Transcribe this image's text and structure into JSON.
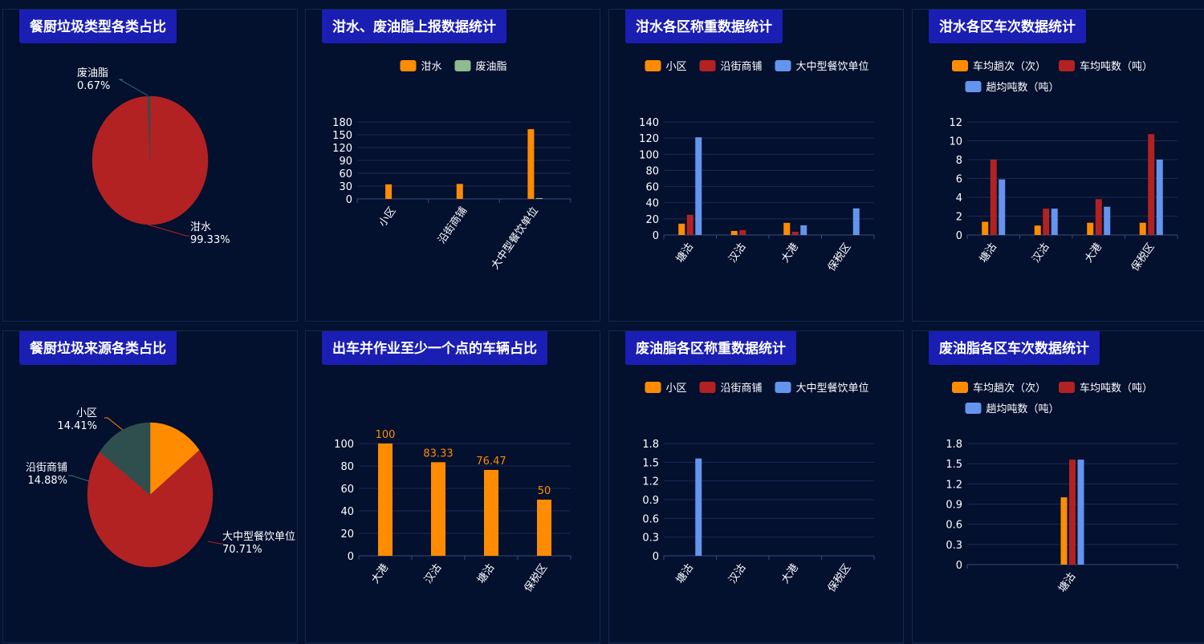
{
  "colors": {
    "orange": "#ff8c00",
    "red": "#b22222",
    "blue": "#6495ed",
    "green": "#8fbc8f",
    "slate": "#2f4f4f"
  },
  "panels": [
    {
      "title": "餐厨垃圾类型各类占比"
    },
    {
      "title": "泔水、废油脂上报数据统计"
    },
    {
      "title": "泔水各区称重数据统计"
    },
    {
      "title": "泔水各区车次数据统计"
    },
    {
      "title": "餐厨垃圾来源各类占比"
    },
    {
      "title": "出车并作业至少一个点的车辆占比"
    },
    {
      "title": "废油脂各区称重数据统计"
    },
    {
      "title": "废油脂各区车次数据统计"
    }
  ],
  "chart_data": [
    {
      "type": "pie",
      "slices": [
        {
          "name": "泔水",
          "value": 99.33,
          "label": "99.33%",
          "color": "#b22222"
        },
        {
          "name": "废油脂",
          "value": 0.67,
          "label": "0.67%",
          "color": "#2f4f4f"
        }
      ]
    },
    {
      "type": "bar",
      "categories": [
        "小区",
        "沿街商铺",
        "大中型餐饮单位"
      ],
      "series": [
        {
          "name": "泔水",
          "values": [
            34,
            35,
            163
          ],
          "color": "#ff8c00"
        },
        {
          "name": "废油脂",
          "values": [
            0,
            0,
            2
          ],
          "color": "#8fbc8f"
        }
      ],
      "ylim": [
        0,
        180
      ],
      "yticks": [
        "0",
        "30",
        "60",
        "90",
        "120",
        "150",
        "180"
      ],
      "legend": "top"
    },
    {
      "type": "bar",
      "categories": [
        "塘沽",
        "汉沽",
        "大港",
        "保税区"
      ],
      "series": [
        {
          "name": "小区",
          "values": [
            14,
            5,
            15,
            0
          ],
          "color": "#ff8c00"
        },
        {
          "name": "沿街商铺",
          "values": [
            25,
            6,
            4,
            0
          ],
          "color": "#b22222"
        },
        {
          "name": "大中型餐饮单位",
          "values": [
            121,
            0,
            12,
            33
          ],
          "color": "#6495ed"
        }
      ],
      "ylim": [
        0,
        140
      ],
      "yticks": [
        "0",
        "20",
        "40",
        "60",
        "80",
        "100",
        "120",
        "140"
      ],
      "legend": "top"
    },
    {
      "type": "bar",
      "categories": [
        "塘沽",
        "汉沽",
        "大港",
        "保税区"
      ],
      "series": [
        {
          "name": "车均趟次（次）",
          "values": [
            1.4,
            1,
            1.3,
            1.3
          ],
          "color": "#ff8c00"
        },
        {
          "name": "车均吨数（吨）",
          "values": [
            8,
            2.8,
            3.8,
            10.7
          ],
          "color": "#b22222"
        },
        {
          "name": "趟均吨数（吨）",
          "values": [
            5.9,
            2.8,
            3,
            8
          ],
          "color": "#6495ed"
        }
      ],
      "ylim": [
        0,
        12
      ],
      "yticks": [
        "0",
        "2",
        "4",
        "6",
        "8",
        "10",
        "12"
      ],
      "legend": "top"
    },
    {
      "type": "pie",
      "slices": [
        {
          "name": "小区",
          "value": 14.41,
          "label": "14.41%",
          "color": "#ff8c00"
        },
        {
          "name": "大中型餐饮单位",
          "value": 70.71,
          "label": "70.71%",
          "color": "#b22222"
        },
        {
          "name": "沿街商铺",
          "value": 14.88,
          "label": "14.88%",
          "color": "#2f4f4f"
        }
      ]
    },
    {
      "type": "bar",
      "categories": [
        "大港",
        "汉沽",
        "塘沽",
        "保税区"
      ],
      "series": [
        {
          "values": [
            100,
            83.33,
            76.47,
            50
          ],
          "labels": [
            "100",
            "83.33",
            "76.47",
            "50"
          ],
          "color": "#ff8c00"
        }
      ],
      "ylim": [
        0,
        100
      ],
      "yticks": [
        "0",
        "20",
        "40",
        "60",
        "80",
        "100"
      ]
    },
    {
      "type": "bar",
      "categories": [
        "塘沽",
        "汉沽",
        "大港",
        "保税区"
      ],
      "series": [
        {
          "name": "小区",
          "values": [
            0,
            0,
            0,
            0
          ],
          "color": "#ff8c00"
        },
        {
          "name": "沿街商铺",
          "values": [
            0,
            0,
            0,
            0
          ],
          "color": "#b22222"
        },
        {
          "name": "大中型餐饮单位",
          "values": [
            1.56,
            0,
            0,
            0
          ],
          "color": "#6495ed"
        }
      ],
      "ylim": [
        0,
        1.8
      ],
      "yticks": [
        "0",
        "0.3",
        "0.6",
        "0.9",
        "1.2",
        "1.5",
        "1.8"
      ],
      "legend": "top"
    },
    {
      "type": "bar",
      "categories": [
        "塘沽"
      ],
      "series": [
        {
          "name": "车均趟次（次）",
          "values": [
            1
          ],
          "color": "#ff8c00"
        },
        {
          "name": "车均吨数（吨）",
          "values": [
            1.56
          ],
          "color": "#b22222"
        },
        {
          "name": "趟均吨数（吨）",
          "values": [
            1.56
          ],
          "color": "#6495ed"
        }
      ],
      "ylim": [
        0,
        1.8
      ],
      "yticks": [
        "0",
        "0.3",
        "0.6",
        "0.9",
        "1.2",
        "1.5",
        "1.8"
      ],
      "legend": "top"
    }
  ]
}
